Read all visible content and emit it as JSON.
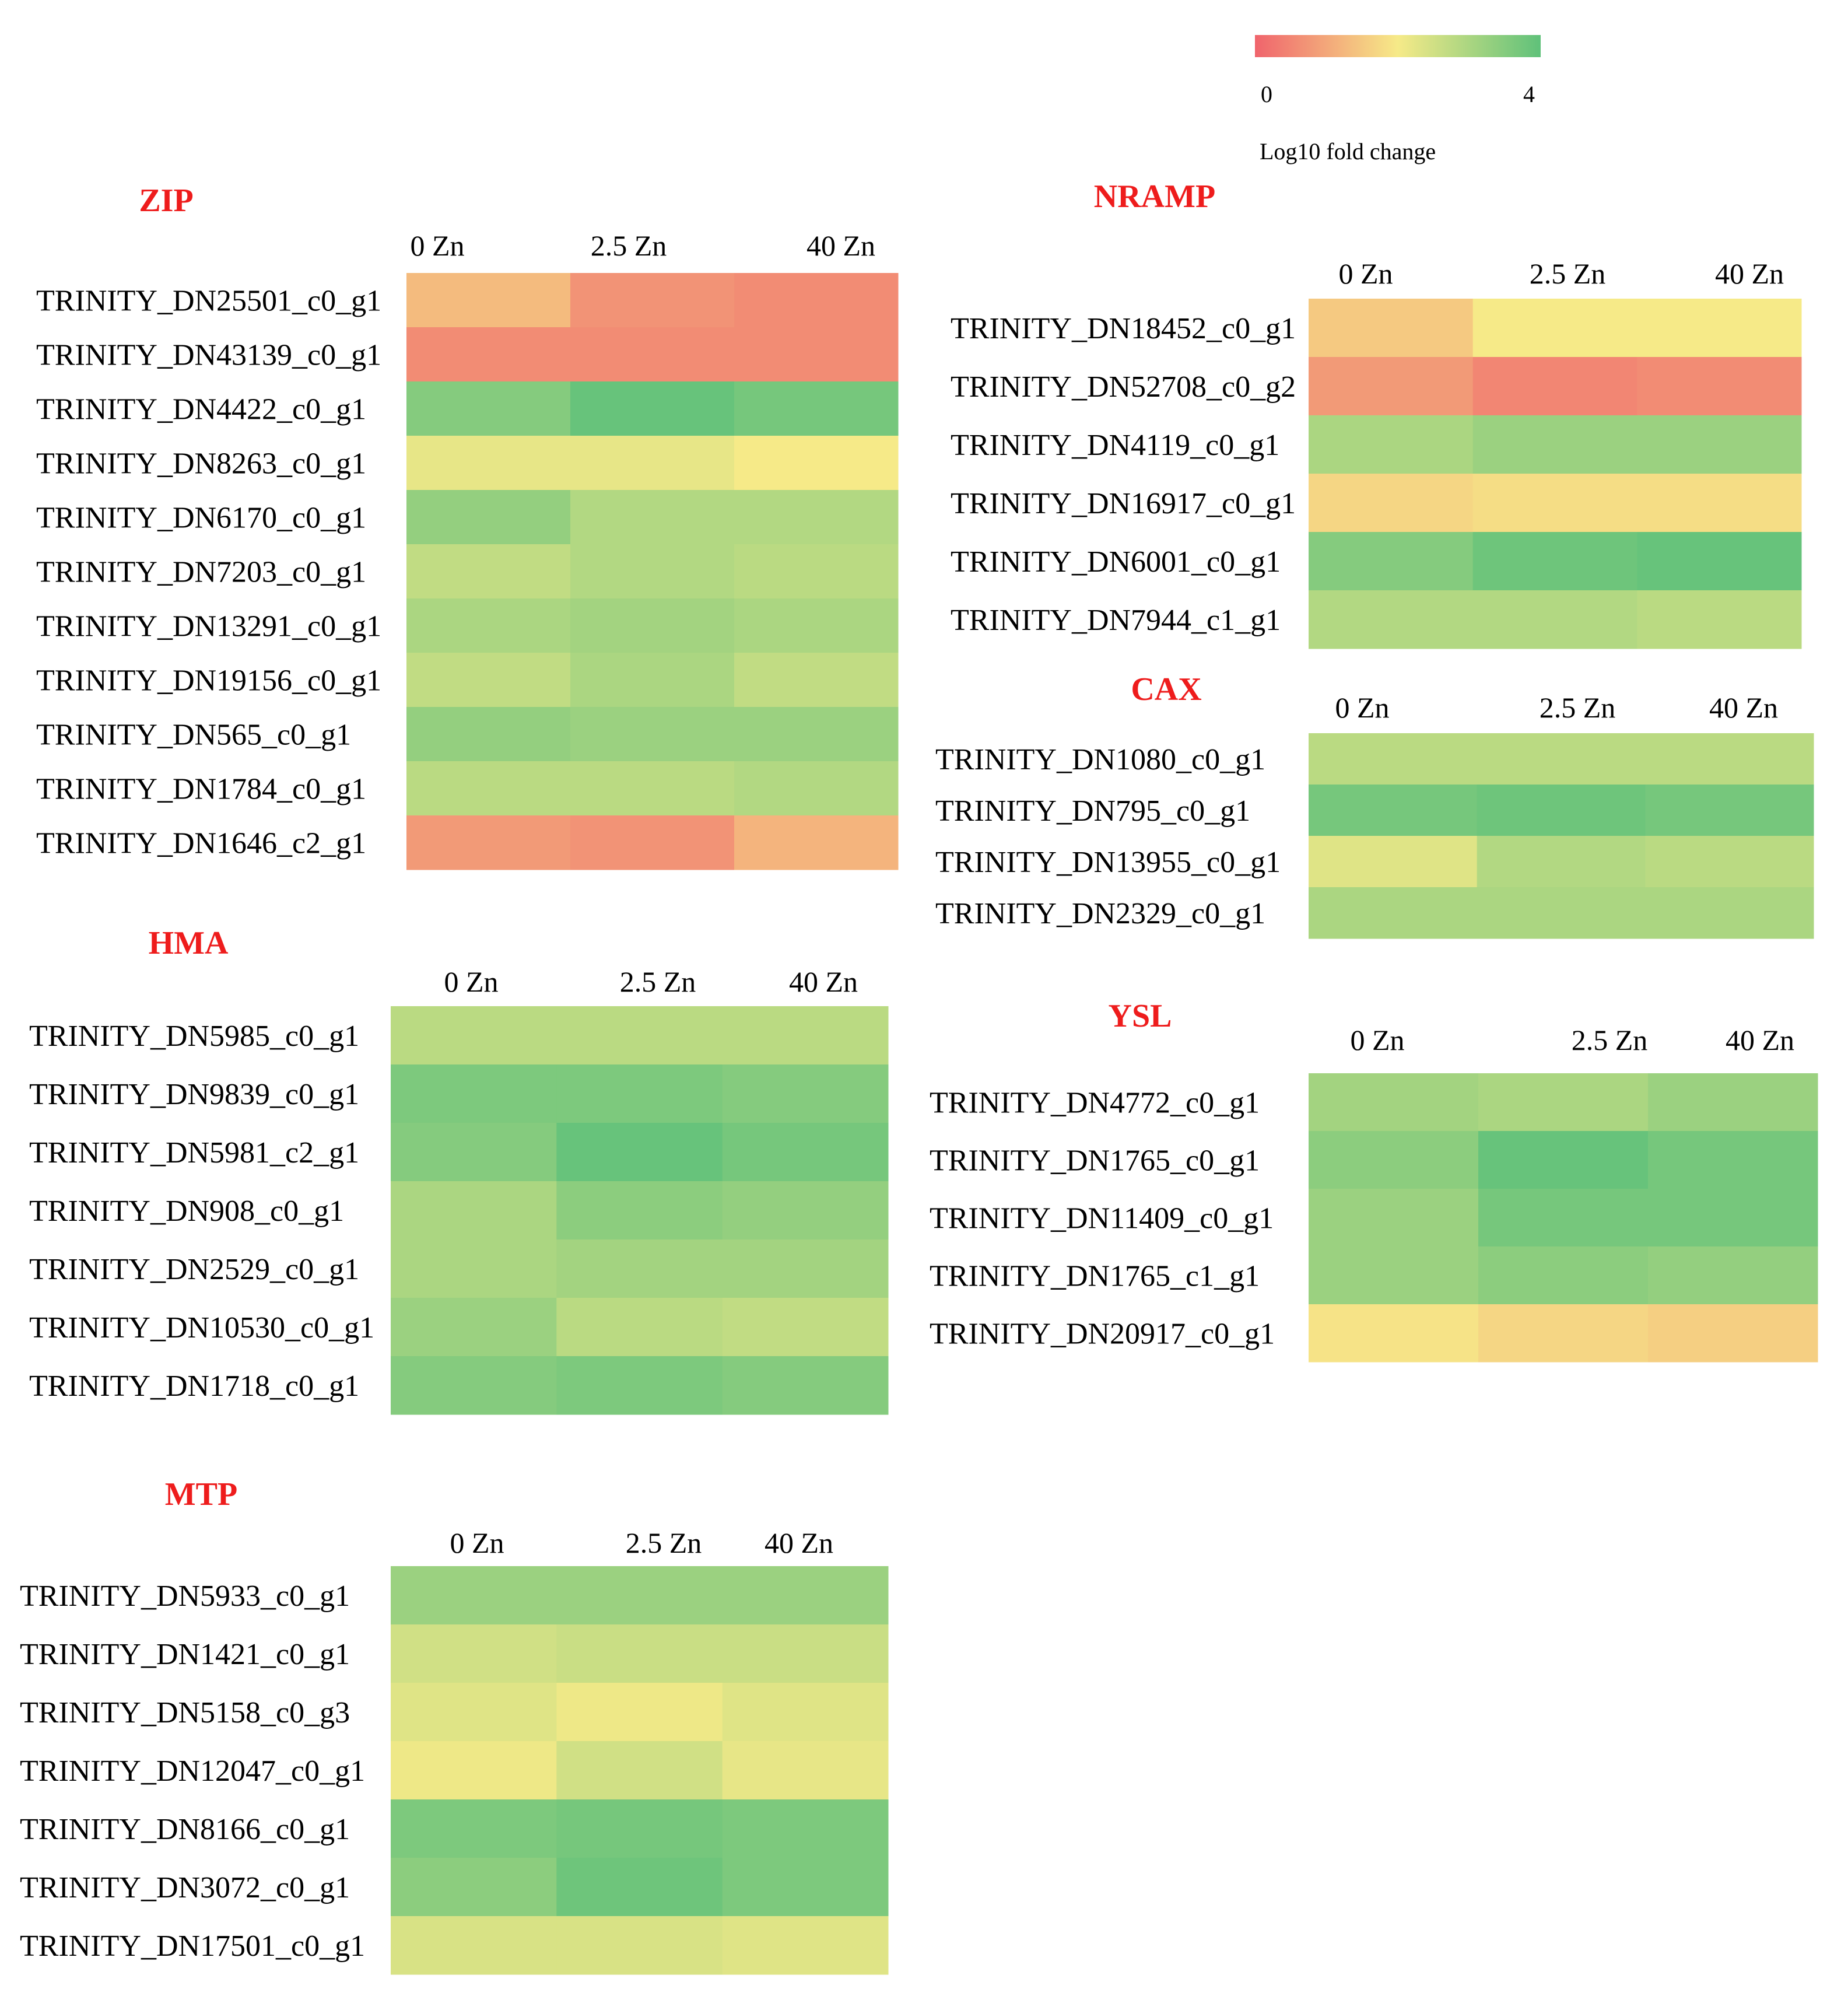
{
  "chart_data": {
    "type": "heatmap",
    "legend": {
      "min": 0,
      "max": 4,
      "min_label": "0",
      "max_label": "4",
      "title": "Log10 fold change",
      "colors": [
        "#f0646c",
        "#f6ea88",
        "#5fc17a"
      ]
    },
    "title_color": "#ee1c1c",
    "panels": [
      {
        "key": "zip",
        "title": "ZIP",
        "columns": [
          "0 Zn",
          "2.5 Zn",
          "40 Zn"
        ],
        "rows": [
          {
            "gene": "TRINITY_DN25501_c0_g1",
            "values": [
              1.3,
              0.7,
              0.6
            ]
          },
          {
            "gene": "TRINITY_DN43139_c0_g1",
            "values": [
              0.6,
              0.6,
              0.6
            ]
          },
          {
            "gene": "TRINITY_DN4422_c0_g1",
            "values": [
              3.5,
              3.9,
              3.7
            ]
          },
          {
            "gene": "TRINITY_DN8263_c0_g1",
            "values": [
              2.2,
              2.2,
              2.0
            ]
          },
          {
            "gene": "TRINITY_DN6170_c0_g1",
            "values": [
              3.3,
              2.9,
              2.9
            ]
          },
          {
            "gene": "TRINITY_DN7203_c0_g1",
            "values": [
              2.7,
              2.9,
              2.8
            ]
          },
          {
            "gene": "TRINITY_DN13291_c0_g1",
            "values": [
              3.0,
              3.1,
              3.0
            ]
          },
          {
            "gene": "TRINITY_DN19156_c0_g1",
            "values": [
              2.7,
              3.0,
              2.7
            ]
          },
          {
            "gene": "TRINITY_DN565_c0_g1",
            "values": [
              3.3,
              3.2,
              3.2
            ]
          },
          {
            "gene": "TRINITY_DN1784_c0_g1",
            "values": [
              2.8,
              2.8,
              2.9
            ]
          },
          {
            "gene": "TRINITY_DN1646_c2_g1",
            "values": [
              0.8,
              0.7,
              1.2
            ]
          }
        ]
      },
      {
        "key": "nramp",
        "title": "NRAMP",
        "columns": [
          "0 Zn",
          "2.5 Zn",
          "40 Zn"
        ],
        "rows": [
          {
            "gene": "TRINITY_DN18452_c0_g1",
            "values": [
              1.5,
              2.0,
              2.0
            ]
          },
          {
            "gene": "TRINITY_DN52708_c0_g2",
            "values": [
              0.8,
              0.5,
              0.6
            ]
          },
          {
            "gene": "TRINITY_DN4119_c0_g1",
            "values": [
              3.0,
              3.2,
              3.2
            ]
          },
          {
            "gene": "TRINITY_DN16917_c0_g1",
            "values": [
              1.7,
              1.8,
              1.8
            ]
          },
          {
            "gene": "TRINITY_DN6001_c0_g1",
            "values": [
              3.5,
              3.8,
              3.9
            ]
          },
          {
            "gene": "TRINITY_DN7944_c1_g1",
            "values": [
              2.9,
              2.9,
              2.8
            ]
          }
        ]
      },
      {
        "key": "cax",
        "title": "CAX",
        "columns": [
          "0 Zn",
          "2.5 Zn",
          "40 Zn"
        ],
        "rows": [
          {
            "gene": "TRINITY_DN1080_c0_g1",
            "values": [
              2.8,
              2.8,
              2.8
            ]
          },
          {
            "gene": "TRINITY_DN795_c0_g1",
            "values": [
              3.7,
              3.8,
              3.7
            ]
          },
          {
            "gene": "TRINITY_DN13955_c0_g1",
            "values": [
              2.3,
              2.9,
              2.8
            ]
          },
          {
            "gene": "TRINITY_DN2329_c0_g1",
            "values": [
              3.0,
              3.0,
              3.0
            ]
          }
        ]
      },
      {
        "key": "ysl",
        "title": "YSL",
        "columns": [
          "0 Zn",
          "2.5 Zn",
          "40 Zn"
        ],
        "rows": [
          {
            "gene": "TRINITY_DN4772_c0_g1",
            "values": [
              3.1,
              3.0,
              3.2
            ]
          },
          {
            "gene": "TRINITY_DN1765_c0_g1",
            "values": [
              3.4,
              3.9,
              3.7
            ]
          },
          {
            "gene": "TRINITY_DN11409_c0_g1",
            "values": [
              3.2,
              3.7,
              3.7
            ]
          },
          {
            "gene": "TRINITY_DN1765_c1_g1",
            "values": [
              3.2,
              3.4,
              3.3
            ]
          },
          {
            "gene": "TRINITY_DN20917_c0_g1",
            "values": [
              1.9,
              1.7,
              1.6
            ]
          }
        ]
      },
      {
        "key": "hma",
        "title": "HMA",
        "columns": [
          "0 Zn",
          "2.5 Zn",
          "40 Zn"
        ],
        "rows": [
          {
            "gene": "TRINITY_DN5985_c0_g1",
            "values": [
              2.8,
              2.8,
              2.8
            ]
          },
          {
            "gene": "TRINITY_DN9839_c0_g1",
            "values": [
              3.6,
              3.6,
              3.5
            ]
          },
          {
            "gene": "TRINITY_DN5981_c2_g1",
            "values": [
              3.5,
              3.9,
              3.7
            ]
          },
          {
            "gene": "TRINITY_DN908_c0_g1",
            "values": [
              3.0,
              3.4,
              3.3
            ]
          },
          {
            "gene": "TRINITY_DN2529_c0_g1",
            "values": [
              3.0,
              3.1,
              3.1
            ]
          },
          {
            "gene": "TRINITY_DN10530_c0_g1",
            "values": [
              3.2,
              2.8,
              2.7
            ]
          },
          {
            "gene": "TRINITY_DN1718_c0_g1",
            "values": [
              3.5,
              3.6,
              3.5
            ]
          }
        ]
      },
      {
        "key": "mtp",
        "title": "MTP",
        "columns": [
          "0 Zn",
          "2.5 Zn",
          "40 Zn"
        ],
        "rows": [
          {
            "gene": "TRINITY_DN5933_c0_g1",
            "values": [
              3.2,
              3.2,
              3.2
            ]
          },
          {
            "gene": "TRINITY_DN1421_c0_g1",
            "values": [
              2.5,
              2.6,
              2.6
            ]
          },
          {
            "gene": "TRINITY_DN5158_c0_g3",
            "values": [
              2.3,
              2.1,
              2.3
            ]
          },
          {
            "gene": "TRINITY_DN12047_c0_g1",
            "values": [
              2.1,
              2.5,
              2.2
            ]
          },
          {
            "gene": "TRINITY_DN8166_c0_g1",
            "values": [
              3.6,
              3.7,
              3.6
            ]
          },
          {
            "gene": "TRINITY_DN3072_c0_g1",
            "values": [
              3.4,
              3.8,
              3.6
            ]
          },
          {
            "gene": "TRINITY_DN17501_c0_g1",
            "values": [
              2.4,
              2.4,
              2.3
            ]
          }
        ]
      }
    ]
  }
}
